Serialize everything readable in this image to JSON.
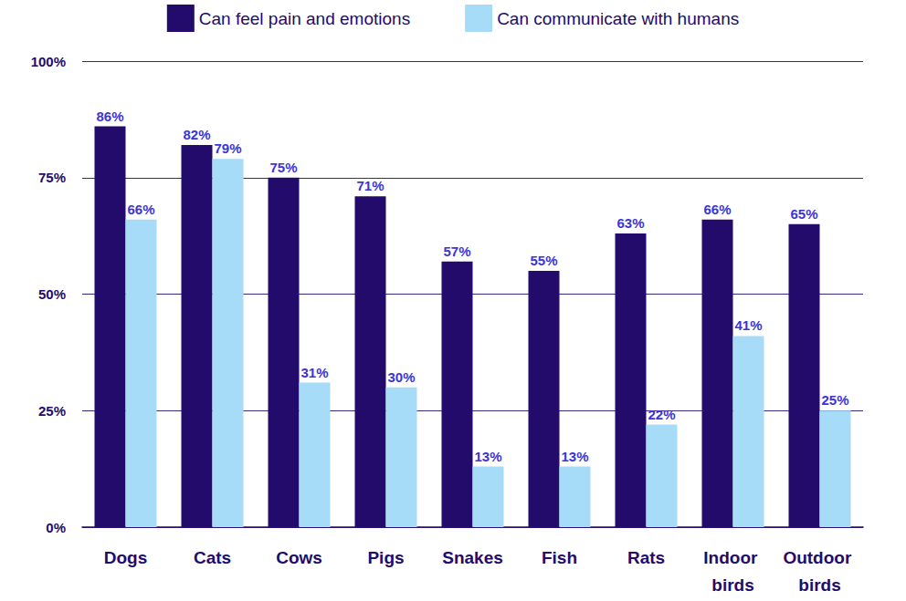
{
  "chart_data": {
    "type": "bar",
    "categories": [
      "Dogs",
      "Cats",
      "Cows",
      "Pigs",
      "Snakes",
      "Fish",
      "Rats",
      "Indoor birds",
      "Outdoor birds"
    ],
    "series": [
      {
        "name": "Can feel pain and emotions",
        "color": "#230b6c",
        "values": [
          86,
          82,
          75,
          71,
          57,
          55,
          63,
          66,
          65
        ],
        "value_labels": [
          "86%",
          "82%",
          "75%",
          "71%",
          "57%",
          "55%",
          "63%",
          "66%",
          "65%"
        ]
      },
      {
        "name": "Can communicate with humans",
        "color": "#a6dcf7",
        "values": [
          66,
          79,
          31,
          30,
          13,
          13,
          22,
          41,
          25
        ],
        "value_labels": [
          "66%",
          "79%",
          "31%",
          "30%",
          "13%",
          "13%",
          "22%",
          "41%",
          "25%"
        ]
      }
    ],
    "ylim": [
      0,
      100
    ],
    "yticks": [
      {
        "value": 0,
        "label": "0%"
      },
      {
        "value": 25,
        "label": "25%"
      },
      {
        "value": 50,
        "label": "50%"
      },
      {
        "value": 75,
        "label": "75%"
      },
      {
        "value": 100,
        "label": "100%"
      }
    ],
    "grid": true,
    "legend": "top",
    "data_labels": true
  }
}
